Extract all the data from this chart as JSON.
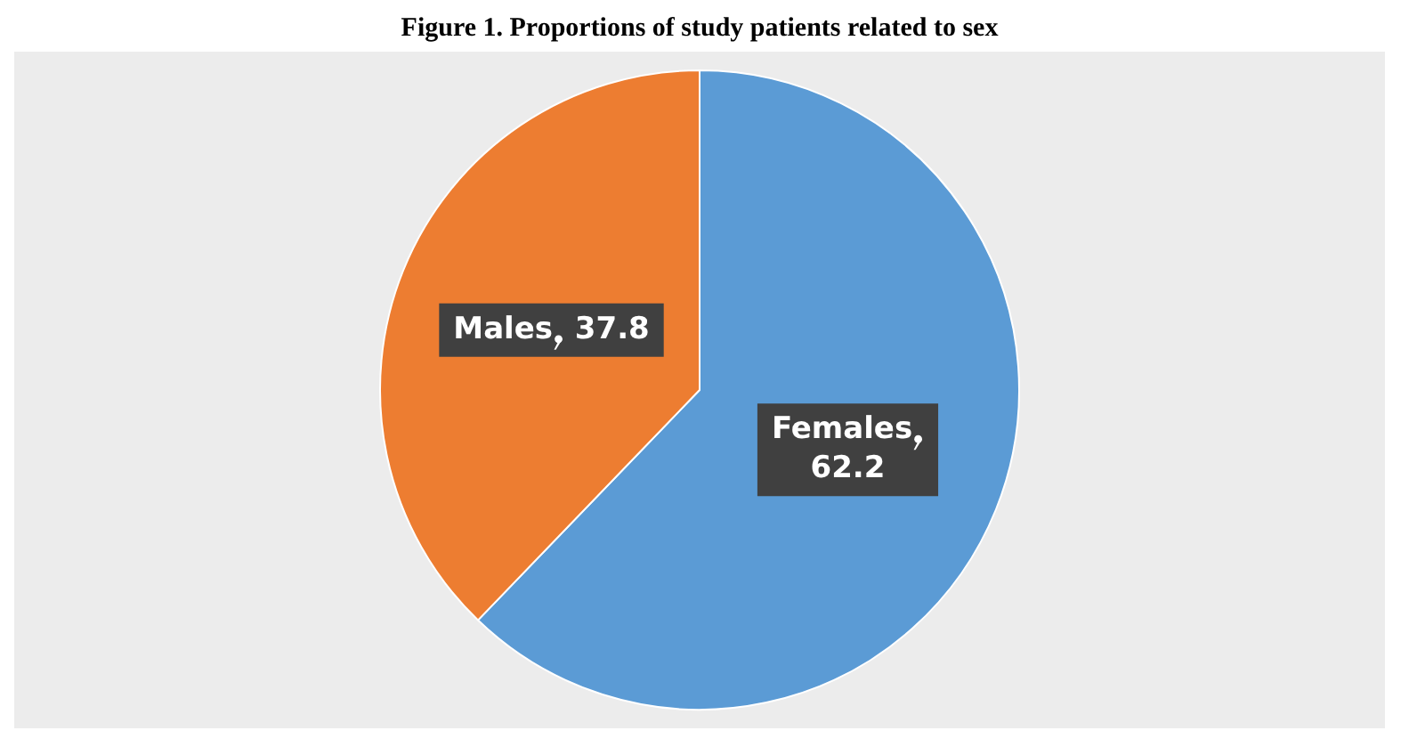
{
  "chart_data": {
    "type": "pie",
    "title": "Figure 1. Proportions of study patients related to sex",
    "categories": [
      "Females",
      "Males"
    ],
    "values": [
      62.2,
      37.8
    ],
    "colors": [
      "#5b9bd5",
      "#ed7d31"
    ],
    "data_labels": true,
    "legend": false
  }
}
